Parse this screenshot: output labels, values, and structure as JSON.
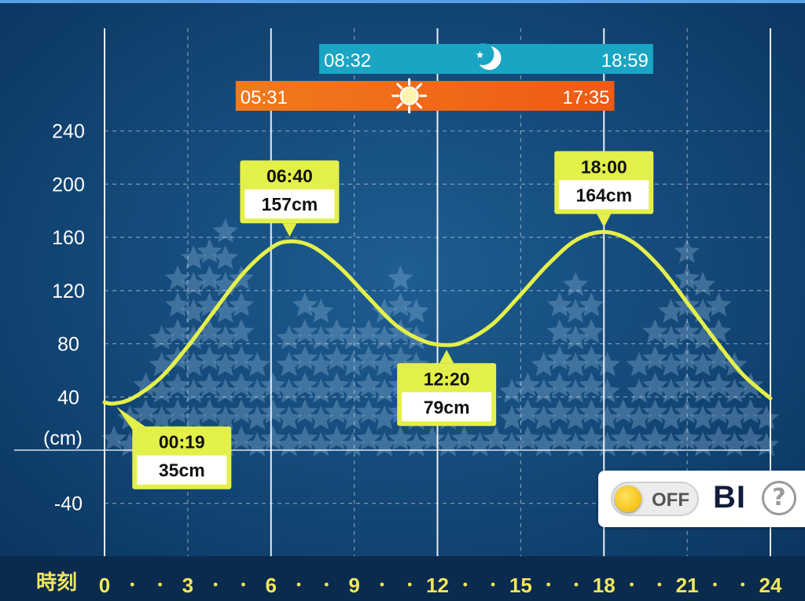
{
  "chart_data": {
    "type": "line",
    "unit_label": "(cm)",
    "x_axis_label": "時刻",
    "x_ticks": [
      0,
      3,
      6,
      9,
      12,
      15,
      18,
      21,
      24
    ],
    "y_ticks": [
      240,
      200,
      160,
      120,
      80,
      40,
      -40
    ],
    "xlim": [
      0,
      24
    ],
    "ylim": [
      -60,
      280
    ],
    "series": [
      {
        "x": [
          0,
          0.32,
          1,
          2,
          3,
          4,
          5,
          6,
          6.67,
          7.5,
          8.5,
          9.5,
          10.5,
          11.5,
          12.33,
          13,
          14,
          15,
          16,
          17,
          18,
          19,
          20,
          21,
          22,
          23,
          24
        ],
        "y": [
          36,
          35,
          39,
          54,
          78,
          106,
          133,
          152,
          157,
          153,
          137,
          115,
          94,
          82,
          79,
          82,
          95,
          117,
          140,
          158,
          164,
          157,
          138,
          111,
          83,
          57,
          39
        ]
      }
    ],
    "extrema": [
      {
        "time": "00:19",
        "label": "35cm",
        "x": 0.32,
        "y": 35,
        "position": "below"
      },
      {
        "time": "06:40",
        "label": "157cm",
        "x": 6.67,
        "y": 157,
        "position": "above"
      },
      {
        "time": "12:20",
        "label": "79cm",
        "x": 12.33,
        "y": 79,
        "position": "below"
      },
      {
        "time": "18:00",
        "label": "164cm",
        "x": 18.0,
        "y": 164,
        "position": "above"
      }
    ],
    "moon": {
      "rise": "08:32",
      "set": "18:59",
      "rise_x": 8.53,
      "set_x": 18.98,
      "color": "#1aa5c4",
      "icon": "moon-icon"
    },
    "sun": {
      "rise": "05:31",
      "set": "17:35",
      "rise_x": 5.52,
      "set_x": 17.58,
      "color": "#f26a1b",
      "icon": "sun-icon"
    },
    "star_heights": [
      1,
      2,
      3,
      5,
      7,
      8,
      8,
      9,
      7,
      4,
      3,
      5,
      6,
      6,
      5,
      5,
      5,
      6,
      7,
      6,
      3,
      3,
      3,
      1,
      1,
      3,
      3,
      4,
      6,
      7,
      6,
      4,
      2,
      4,
      5,
      6,
      8,
      7,
      6,
      4,
      3,
      2
    ],
    "line_color": "#e4f04a",
    "grid": true
  },
  "toggle": {
    "state": "OFF",
    "label": "BI",
    "help": "?"
  }
}
